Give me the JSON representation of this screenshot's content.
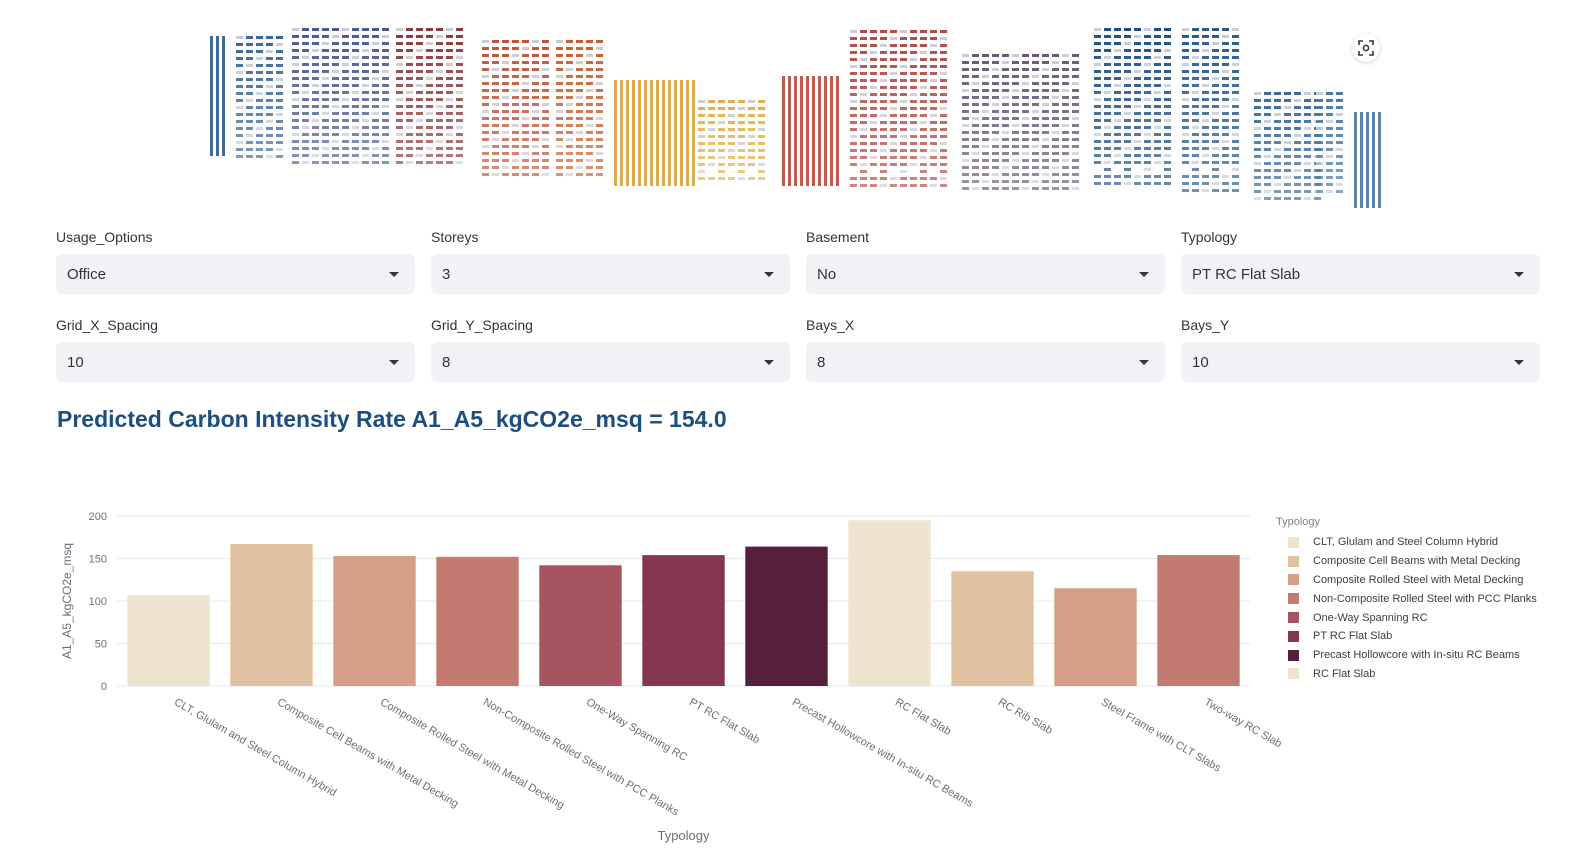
{
  "controls": [
    {
      "label": "Usage_Options",
      "value": "Office"
    },
    {
      "label": "Storeys",
      "value": "3"
    },
    {
      "label": "Basement",
      "value": "No"
    },
    {
      "label": "Typology",
      "value": "PT RC Flat Slab"
    },
    {
      "label": "Grid_X_Spacing",
      "value": "10"
    },
    {
      "label": "Grid_Y_Spacing",
      "value": "8"
    },
    {
      "label": "Bays_X",
      "value": "8"
    },
    {
      "label": "Bays_Y",
      "value": "10"
    }
  ],
  "result": {
    "text": "Predicted Carbon Intensity Rate A1_A5_kgCO2e_msq = 154.0"
  },
  "legend": {
    "title": "Typology"
  },
  "chart_data": {
    "type": "bar",
    "xlabel": "Typology",
    "ylabel": "A1_A5_kgCO2e_msq",
    "ylim": [
      0,
      200
    ],
    "yticks": [
      "0",
      "50",
      "100",
      "150",
      "200"
    ],
    "grid": true,
    "legend_position": "right",
    "categories": [
      "CLT, Glulam and Steel Column Hybrid",
      "Composite Cell Beams with Metal Decking",
      "Composite Rolled Steel with Metal Decking",
      "Non-Composite Rolled Steel with PCC Planks",
      "One-Way Spanning RC",
      "PT RC Flat Slab",
      "Precast Hollowcore with In-situ RC Beams",
      "RC Flat Slab",
      "RC Rib Slab",
      "Steel Frame with CLT Slabs",
      "Two-way RC Slab"
    ],
    "values": [
      107,
      167,
      153,
      152,
      142,
      154,
      164,
      195,
      135,
      115,
      154
    ],
    "colors": [
      "#ede3cf",
      "#e0c2a0",
      "#d49f84",
      "#c17b70",
      "#a65460",
      "#853751",
      "#561f3b",
      "#ede3cf",
      "#e0c2a0",
      "#d49f84",
      "#c17b70"
    ],
    "legend_items": [
      "CLT, Glulam and Steel Column Hybrid",
      "Composite Cell Beams with Metal Decking",
      "Composite Rolled Steel with Metal Decking",
      "Non-Composite Rolled Steel with PCC Planks",
      "One-Way Spanning RC",
      "PT RC Flat Slab",
      "Precast Hollowcore with In-situ RC Beams",
      "RC Flat Slab"
    ]
  },
  "icons": {
    "fullscreen": "fullscreen-icon",
    "dropdown": "chevron-down-icon"
  }
}
